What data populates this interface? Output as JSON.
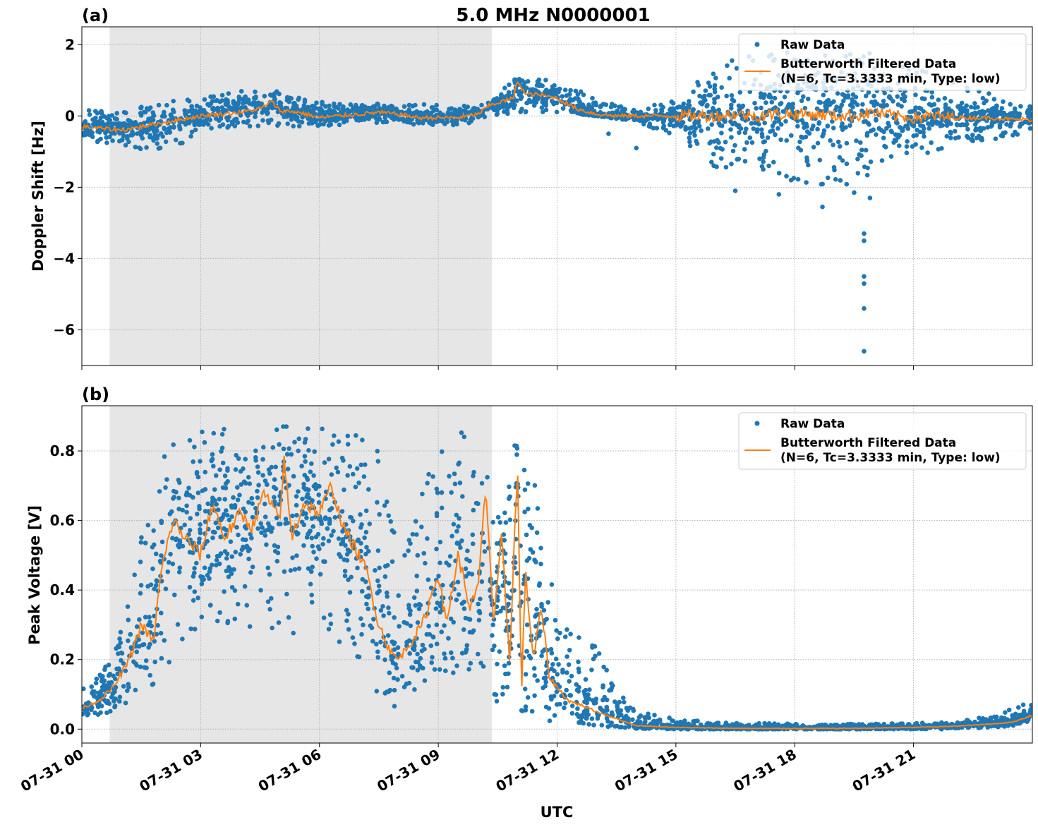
{
  "figure": {
    "title": "5.0 MHz N0000001",
    "xlabel": "UTC"
  },
  "colors": {
    "raw": "#1f77b4",
    "filtered": "#ff7f0e",
    "shade": "#e6e6e6",
    "grid": "#b0b0b0"
  },
  "chart_data": [
    {
      "type": "scatter",
      "panel_label": "(a)",
      "ylabel": "Doppler Shift [Hz]",
      "x_unit": "hours UTC on 07-31",
      "xlim": [
        0,
        24
      ],
      "ylim": [
        -7,
        2.5
      ],
      "yticks": [
        2,
        0,
        -2,
        -4,
        -6
      ],
      "ytick_labels": [
        "2",
        "0",
        "−2",
        "−4",
        "−6"
      ],
      "shaded_region": [
        0.7,
        10.35
      ],
      "grid": true,
      "legend_position": "top-right",
      "legend": {
        "raw": "Raw Data",
        "filtered_line1": "Butterworth Filtered Data",
        "filtered_line2": "(N=6, Tc=3.3333 min, Type: low)"
      },
      "series": [
        {
          "name": "Butterworth Filtered Data",
          "kind": "line",
          "x": [
            0,
            0.5,
            1,
            1.5,
            2,
            2.5,
            3,
            3.5,
            4,
            4.5,
            4.8,
            5,
            5.5,
            6,
            6.5,
            7,
            7.5,
            8,
            8.5,
            9,
            9.5,
            10,
            10.3,
            10.6,
            10.9,
            11,
            11.2,
            11.5,
            12,
            12.5,
            13,
            13.5,
            14,
            14.5,
            15,
            15.5,
            16,
            16.5,
            17,
            17.5,
            18,
            18.5,
            19,
            19.5,
            20,
            20.5,
            21,
            21.5,
            22,
            22.5,
            23,
            23.5,
            24
          ],
          "y": [
            -0.3,
            -0.35,
            -0.4,
            -0.3,
            -0.2,
            -0.1,
            0,
            0.05,
            0.1,
            0.2,
            0.4,
            0.15,
            0.1,
            -0.05,
            0,
            0.05,
            0.1,
            0.05,
            -0.05,
            -0.05,
            -0.05,
            0.05,
            0.3,
            0.4,
            0.5,
            1.0,
            0.6,
            0.6,
            0.5,
            0.2,
            0.05,
            0,
            0,
            0,
            0,
            0,
            0,
            0.05,
            0,
            0.05,
            0.05,
            0.05,
            0,
            0,
            0.1,
            0,
            -0.05,
            0,
            -0.05,
            -0.05,
            -0.05,
            -0.1,
            -0.1
          ]
        },
        {
          "name": "Raw Data",
          "kind": "band",
          "x": [
            0,
            1,
            2,
            3,
            4,
            5,
            6,
            7,
            8,
            9,
            10,
            10.3,
            11,
            12,
            13,
            14,
            15,
            16,
            17,
            18,
            19,
            20,
            21,
            22,
            23,
            24
          ],
          "upper": [
            0.2,
            0.1,
            0.4,
            0.5,
            0.7,
            0.7,
            0.4,
            0.3,
            0.4,
            0.3,
            0.3,
            0.5,
            1.1,
            1.0,
            0.5,
            0.15,
            0.5,
            1.5,
            1.7,
            1.8,
            1.7,
            1.9,
            1.4,
            1.0,
            0.6,
            0.3
          ],
          "lower": [
            -0.7,
            -0.8,
            -1.2,
            -0.4,
            -0.3,
            -0.3,
            -0.3,
            -0.2,
            -0.2,
            -0.3,
            -0.2,
            0.0,
            0.1,
            0.1,
            0.0,
            -0.15,
            -0.6,
            -1.5,
            -1.6,
            -1.9,
            -2.1,
            -1.6,
            -1.2,
            -0.8,
            -0.7,
            -0.5
          ],
          "outliers_x": [
            19.75,
            19.75,
            19.75,
            19.75,
            19.75,
            19.75,
            16.5,
            17.6,
            18.7,
            19.9,
            19.5,
            13.3,
            14.0
          ],
          "outliers_y": [
            -3.3,
            -3.5,
            -4.5,
            -4.7,
            -5.4,
            -6.6,
            -2.1,
            -2.2,
            -2.55,
            -2.3,
            -2.15,
            -0.5,
            -0.9
          ]
        }
      ]
    },
    {
      "type": "scatter",
      "panel_label": "(b)",
      "ylabel": "Peak Voltage [V]",
      "x_unit": "hours UTC on 07-31",
      "xlim": [
        0,
        24
      ],
      "ylim": [
        -0.04,
        0.93
      ],
      "yticks": [
        0.8,
        0.6,
        0.4,
        0.2,
        0.0
      ],
      "ytick_labels": [
        "0.8",
        "0.6",
        "0.4",
        "0.2",
        "0.0"
      ],
      "xticks": [
        0,
        3,
        6,
        9,
        12,
        15,
        18,
        21
      ],
      "xtick_labels": [
        "07-31 00",
        "07-31 03",
        "07-31 06",
        "07-31 09",
        "07-31 12",
        "07-31 15",
        "07-31 18",
        "07-31 21"
      ],
      "shaded_region": [
        0.7,
        10.35
      ],
      "grid": true,
      "legend_position": "top-right",
      "legend": {
        "raw": "Raw Data",
        "filtered_line1": "Butterworth Filtered Data",
        "filtered_line2": "(N=6, Tc=3.3333 min, Type: low)"
      },
      "series": [
        {
          "name": "Butterworth Filtered Data",
          "kind": "line",
          "x": [
            0,
            0.4,
            0.8,
            1.2,
            1.5,
            1.8,
            2,
            2.3,
            2.6,
            3,
            3.3,
            3.6,
            4,
            4.3,
            4.6,
            5,
            5.1,
            5.3,
            5.6,
            6,
            6.3,
            6.6,
            7,
            7.2,
            7.5,
            7.8,
            8,
            8.3,
            8.6,
            9,
            9.2,
            9.5,
            9.8,
            10,
            10.2,
            10.4,
            10.6,
            10.8,
            11,
            11.1,
            11.2,
            11.4,
            11.6,
            11.8,
            12,
            12.3,
            12.6,
            13,
            13.5,
            14,
            15,
            16,
            17,
            18,
            19,
            20,
            21,
            22,
            23,
            23.5,
            24
          ],
          "y": [
            0.06,
            0.08,
            0.12,
            0.2,
            0.3,
            0.25,
            0.45,
            0.6,
            0.55,
            0.5,
            0.65,
            0.55,
            0.62,
            0.58,
            0.68,
            0.6,
            0.78,
            0.55,
            0.65,
            0.62,
            0.7,
            0.58,
            0.5,
            0.45,
            0.3,
            0.22,
            0.2,
            0.25,
            0.3,
            0.45,
            0.3,
            0.5,
            0.35,
            0.4,
            0.7,
            0.3,
            0.55,
            0.2,
            0.76,
            0.1,
            0.45,
            0.2,
            0.35,
            0.15,
            0.12,
            0.08,
            0.07,
            0.05,
            0.03,
            0.01,
            0.005,
            0.003,
            0.002,
            0.002,
            0.002,
            0.003,
            0.005,
            0.008,
            0.015,
            0.02,
            0.04
          ]
        },
        {
          "name": "Raw Data",
          "kind": "band",
          "x": [
            0,
            0.5,
            1,
            1.5,
            2,
            2.5,
            3,
            4,
            5,
            6,
            7,
            7.5,
            8,
            8.5,
            9,
            9.5,
            10,
            10.3,
            10.6,
            11,
            11.5,
            12,
            12.5,
            13,
            13.5,
            14,
            15,
            16,
            18,
            20,
            22,
            23,
            23.5,
            24
          ],
          "upper": [
            0.12,
            0.16,
            0.3,
            0.55,
            0.78,
            0.85,
            0.86,
            0.87,
            0.87,
            0.87,
            0.85,
            0.8,
            0.5,
            0.7,
            0.86,
            0.87,
            0.87,
            0.86,
            0.6,
            0.88,
            0.7,
            0.35,
            0.3,
            0.25,
            0.12,
            0.05,
            0.03,
            0.02,
            0.015,
            0.015,
            0.02,
            0.04,
            0.06,
            0.08
          ],
          "lower": [
            0.02,
            0.04,
            0.06,
            0.1,
            0.15,
            0.25,
            0.3,
            0.3,
            0.25,
            0.3,
            0.2,
            0.08,
            0.05,
            0.1,
            0.15,
            0.15,
            0.12,
            0.1,
            0.05,
            0.06,
            0.03,
            0.02,
            0.02,
            0.01,
            0.005,
            0.002,
            0.0,
            0.0,
            0.0,
            0.0,
            0.0,
            0.005,
            0.01,
            0.02
          ]
        }
      ]
    }
  ]
}
